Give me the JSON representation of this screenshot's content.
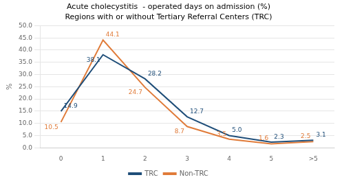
{
  "chart_data": {
    "type": "line",
    "title": "Acute cholecystitis  - operated days on admission (%)",
    "subtitle": "Regions with or without Tertiary Referral Centers (TRC)",
    "categories": [
      "0",
      "1",
      "2",
      "3",
      "4",
      "5",
      ">5"
    ],
    "series": [
      {
        "name": "TRC",
        "color": "#1f4e79",
        "values": [
          14.9,
          38.1,
          28.2,
          12.7,
          5.0,
          2.3,
          3.1
        ],
        "value_labels": [
          "14.9",
          "38.1",
          "28.2",
          "12.7",
          "5.0",
          "2.3",
          "3.1"
        ]
      },
      {
        "name": "Non-TRC",
        "color": "#e07b39",
        "values": [
          10.5,
          44.1,
          24.7,
          8.7,
          3.5,
          1.6,
          2.5
        ],
        "value_labels": [
          "10.5",
          "44.1",
          "24.7",
          "8.7",
          "3.5",
          "1.6",
          "2.5"
        ]
      }
    ],
    "ylabel": "%",
    "ylim": [
      0.0,
      50.0
    ],
    "yticks": [
      {
        "value": 0,
        "label": "0.0"
      },
      {
        "value": 5,
        "label": "5.0"
      },
      {
        "value": 10,
        "label": "10.0"
      },
      {
        "value": 15,
        "label": "15.0"
      },
      {
        "value": 20,
        "label": "20.0"
      },
      {
        "value": 25,
        "label": "25.0"
      },
      {
        "value": 30,
        "label": "30.0"
      },
      {
        "value": 35,
        "label": "35.0"
      },
      {
        "value": 40,
        "label": "40.0"
      },
      {
        "value": 45,
        "label": "45.0"
      },
      {
        "value": 50,
        "label": "50.0"
      }
    ],
    "grid": "y",
    "legend": "bottom",
    "data_labels": true
  }
}
